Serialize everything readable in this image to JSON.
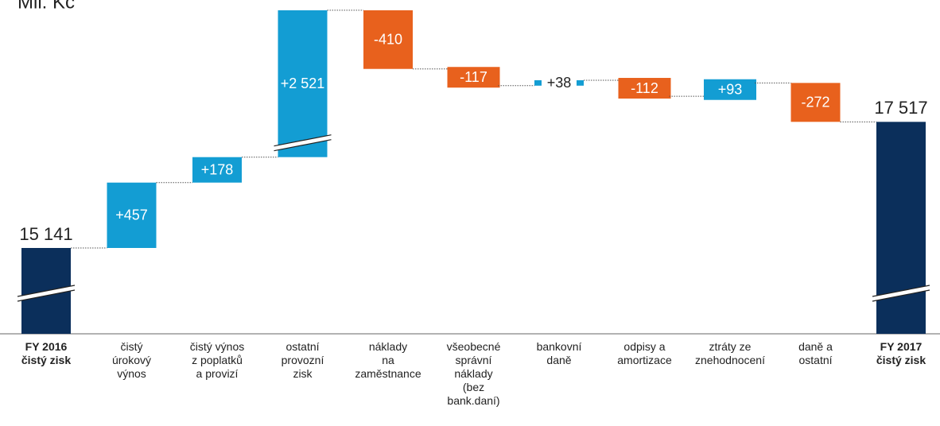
{
  "chart_data": {
    "type": "waterfall",
    "title": "Mil. Kč",
    "categories": [
      "FY 2016\nčistý zisk",
      "čistý\núrokový\nvýnos",
      "čistý výnos\nz poplatků\na provizí",
      "ostatní\nprovozní\nzisk",
      "náklady\nna\nzaměstnance",
      "všeobecné\nsprávní\nnáklady\n(bez\nbank.daní)",
      "bankovní\ndaně",
      "odpisy a\namortizace",
      "ztráty ze\nznehodnocení",
      "daně a\nostatní",
      "FY 2017\nčistý zisk"
    ],
    "values": [
      15141,
      457,
      178,
      2521,
      -410,
      -117,
      38,
      -112,
      93,
      -272,
      17517
    ],
    "value_labels": [
      "15 141",
      "+457",
      "+178",
      "+2 521",
      "-410",
      "-117",
      "+38",
      "-112",
      "+93",
      "-272",
      "17 517"
    ],
    "measure": [
      "total",
      "relative",
      "relative",
      "relative",
      "relative",
      "relative",
      "relative",
      "relative",
      "relative",
      "relative",
      "total"
    ],
    "colors": {
      "total": "#0b2f5b",
      "increase": "#139dd3",
      "decrease": "#e8611d"
    }
  }
}
